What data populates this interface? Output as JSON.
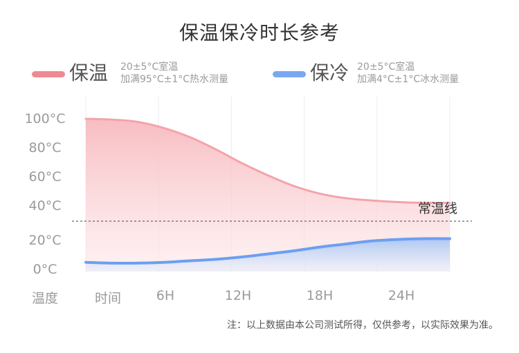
{
  "title": "保温保冷时长参考",
  "legend": [
    {
      "label": "保温",
      "note_line1": "20±5°C室温",
      "note_line2": "加满95°C±1°C热水测量",
      "color": "#f08a92"
    },
    {
      "label": "保冷",
      "note_line1": "20±5°C室温",
      "note_line2": "加满4°C±1°C冰水测量",
      "color": "#7aa8f0"
    }
  ],
  "footnote": "注：以上数据由本公司测试所得，仅供参考，以实际效果为准。",
  "chart_data": {
    "type": "area",
    "title": "保温保冷时长参考",
    "ylabel": "温度",
    "xlabel": "时间",
    "x_ticks": [
      "6H",
      "12H",
      "18H",
      "24H"
    ],
    "y_ticks": [
      "100°C",
      "80°C",
      "60°C",
      "40°C",
      "20°C",
      "0°C"
    ],
    "xlim": [
      0,
      28
    ],
    "ylim": [
      0,
      100
    ],
    "baseline": {
      "label": "常温线",
      "value": 33
    },
    "grid": "vertical",
    "legend_position": "top-left",
    "series": [
      {
        "name": "保温",
        "color": "#f08a92",
        "x": [
          0,
          2,
          4,
          6,
          8,
          10,
          12,
          14,
          16,
          18,
          20,
          22,
          24,
          26,
          28
        ],
        "y": [
          100,
          99.5,
          98,
          94,
          88,
          80,
          71,
          63,
          56,
          51,
          48,
          46.5,
          45.5,
          45,
          45
        ]
      },
      {
        "name": "保冷",
        "color": "#7aa8f0",
        "x": [
          0,
          2,
          4,
          6,
          8,
          10,
          12,
          14,
          16,
          18,
          20,
          22,
          24,
          26,
          28
        ],
        "y": [
          6,
          5.5,
          5.5,
          6,
          7,
          8,
          9.5,
          11.5,
          13.5,
          16,
          18,
          20,
          21,
          21.5,
          21.5
        ]
      }
    ]
  }
}
